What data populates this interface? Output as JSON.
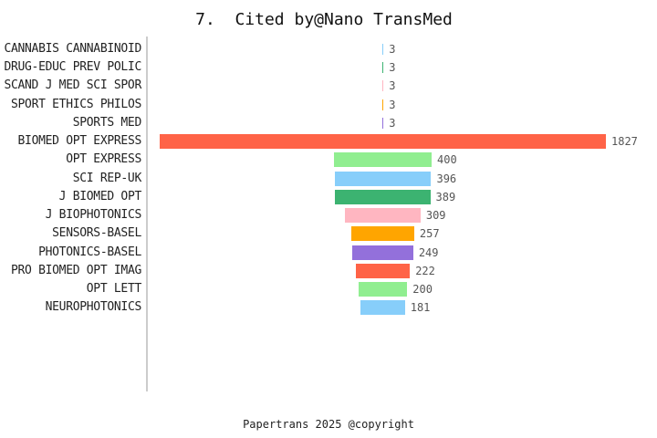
{
  "title": "7.  Cited by@Nano TransMed",
  "footer": "Papertrans 2025 @copyright",
  "chart_data": {
    "type": "bar",
    "orientation": "horizontal-centered-funnel",
    "title": "7.  Cited by@Nano TransMed",
    "categories": [
      "CANNABIS CANNABINOID",
      "DRUG-EDUC PREV POLIC",
      "SCAND J MED SCI SPOR",
      "SPORT ETHICS PHILOS",
      "SPORTS MED",
      "BIOMED OPT EXPRESS",
      "OPT EXPRESS",
      "SCI REP-UK",
      "J BIOMED OPT",
      "J BIOPHOTONICS",
      "SENSORS-BASEL",
      "PHOTONICS-BASEL",
      "PRO BIOMED OPT IMAG",
      "OPT LETT",
      "NEUROPHOTONICS"
    ],
    "values": [
      3,
      3,
      3,
      3,
      3,
      1827,
      400,
      396,
      389,
      309,
      257,
      249,
      222,
      200,
      181
    ],
    "colors": [
      "#87CEFA",
      "#3CB371",
      "#FFB6C1",
      "#FFA500",
      "#9370DB",
      "#FF6347",
      "#90EE90",
      "#87CEFA",
      "#3CB371",
      "#FFB6C1",
      "#FFA500",
      "#9370DB",
      "#FF6347",
      "#90EE90",
      "#87CEFA"
    ],
    "value_labels_shown": true,
    "xmax": 1827,
    "legend": "none",
    "grid": "off",
    "style": {
      "axis_line_color": "#cccccc",
      "category_label_color": "#222222",
      "value_label_color": "#555555",
      "background_color": "#ffffff"
    }
  }
}
